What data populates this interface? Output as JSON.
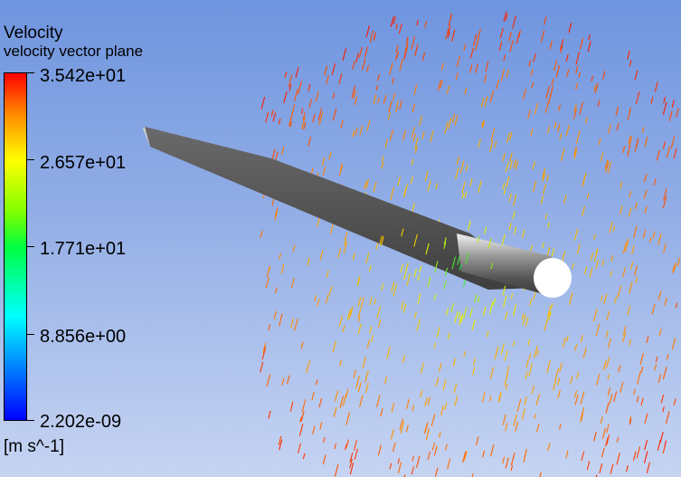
{
  "legend": {
    "title": "Velocity",
    "subtitle": "velocity vector plane",
    "ticks": [
      "3.542e+01",
      "2.657e+01",
      "1.771e+01",
      "8.856e+00",
      "2.202e-09"
    ],
    "units": "[m s^-1]"
  },
  "colors": {
    "background_top": "#6f95df",
    "background_bottom": "#c6d4f2",
    "blade": "#555555",
    "hub": "#ffffff",
    "colormap": [
      "#0000ff",
      "#00ffff",
      "#00ff40",
      "#ffff00",
      "#ff8c00",
      "#ff0000"
    ]
  },
  "scene": {
    "velocity_min": 2.202e-09,
    "velocity_max": 35.42
  }
}
